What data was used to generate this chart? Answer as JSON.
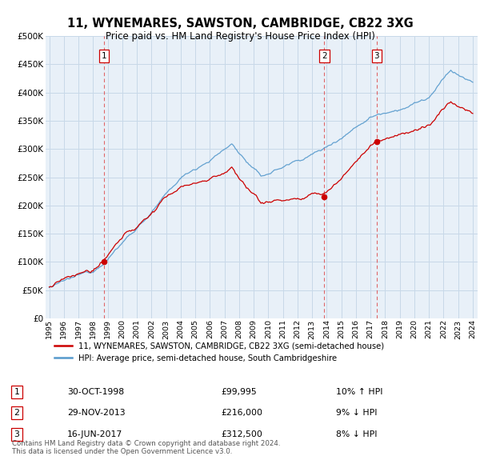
{
  "title": "11, WYNEMARES, SAWSTON, CAMBRIDGE, CB22 3XG",
  "subtitle": "Price paid vs. HM Land Registry's House Price Index (HPI)",
  "ylabel_ticks": [
    "£0",
    "£50K",
    "£100K",
    "£150K",
    "£200K",
    "£250K",
    "£300K",
    "£350K",
    "£400K",
    "£450K",
    "£500K"
  ],
  "ytick_vals": [
    0,
    50000,
    100000,
    150000,
    200000,
    250000,
    300000,
    350000,
    400000,
    450000,
    500000
  ],
  "ylim": [
    0,
    500000
  ],
  "sale_prices": [
    99995,
    216000,
    312500
  ],
  "sale_labels": [
    "1",
    "2",
    "3"
  ],
  "legend_red": "11, WYNEMARES, SAWSTON, CAMBRIDGE, CB22 3XG (semi-detached house)",
  "legend_blue": "HPI: Average price, semi-detached house, South Cambridgeshire",
  "red_color": "#cc0000",
  "blue_color": "#5599cc",
  "blue_fill": "#ddeeff",
  "vline_color": "#dd4444",
  "background_color": "#ffffff",
  "chart_bg": "#e8f0f8",
  "grid_color": "#c8d8e8",
  "table_border_color": "#cc0000",
  "row_data": [
    [
      "1",
      "30-OCT-1998",
      "£99,995",
      "10% ↑ HPI"
    ],
    [
      "2",
      "29-NOV-2013",
      "£216,000",
      "9% ↓ HPI"
    ],
    [
      "3",
      "16-JUN-2017",
      "£312,500",
      "8% ↓ HPI"
    ]
  ],
  "footnote1": "Contains HM Land Registry data © Crown copyright and database right 2024.",
  "footnote2": "This data is licensed under the Open Government Licence v3.0."
}
